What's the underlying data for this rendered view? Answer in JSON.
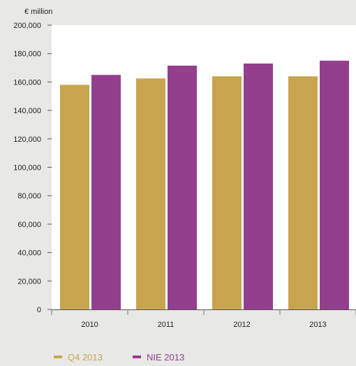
{
  "chart_data": {
    "type": "bar",
    "unit_label": "€ million",
    "categories": [
      "2010",
      "2011",
      "2012",
      "2013"
    ],
    "series": [
      {
        "name": "Q4 2013",
        "values": [
          158000,
          162500,
          164000,
          164000
        ],
        "color": "#c8a44f"
      },
      {
        "name": "NIE 2013",
        "values": [
          165000,
          171500,
          173000,
          175000
        ],
        "color": "#943f8d"
      }
    ],
    "ylim": [
      0,
      200000
    ],
    "yticks": [
      0,
      20000,
      40000,
      60000,
      80000,
      100000,
      120000,
      140000,
      160000,
      180000,
      200000
    ],
    "ytick_labels": [
      "0",
      "20,000",
      "40,000",
      "60,000",
      "80,000",
      "100,000",
      "120,000",
      "140,000",
      "160,000",
      "180,000",
      "200,000"
    ],
    "grid": false,
    "legend_position": "bottom-left",
    "plot_background": "#ffffff",
    "page_background": "#e8e8e6"
  }
}
